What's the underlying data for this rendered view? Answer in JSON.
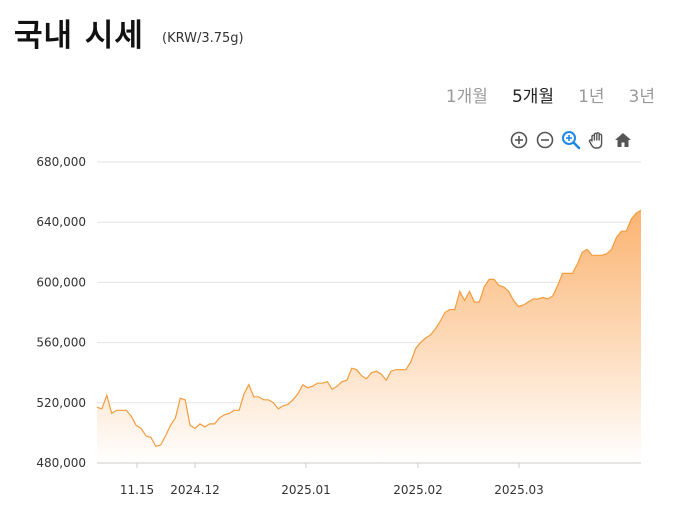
{
  "header": {
    "title": "국내 시세",
    "unit": "(KRW/3.75g)"
  },
  "tabs": [
    {
      "label": "1개월",
      "active": false
    },
    {
      "label": "5개월",
      "active": true
    },
    {
      "label": "1년",
      "active": false
    },
    {
      "label": "3년",
      "active": false
    }
  ],
  "toolbar": {
    "icons": [
      "zoom-in-icon",
      "zoom-out-icon",
      "magnifier-zoom-icon",
      "pan-hand-icon",
      "home-reset-icon"
    ],
    "accent": "#1e88e5",
    "icon_color": "#555555"
  },
  "chart_data": {
    "type": "area",
    "ylim": [
      480000,
      680000
    ],
    "yticks": [
      480000,
      520000,
      560000,
      600000,
      640000,
      680000
    ],
    "ytick_labels": [
      "480,000",
      "520,000",
      "560,000",
      "600,000",
      "640,000",
      "680,000"
    ],
    "xticks": [
      "11.15",
      "2024.12",
      "2025.01",
      "2025.02",
      "2025.03"
    ],
    "line_color": "#f39c3c",
    "fill_top_color": "#fbb06a",
    "fill_bottom_color": "#ffffff",
    "values": [
      517000,
      516000,
      525000,
      513000,
      515000,
      515000,
      515000,
      511000,
      505000,
      503000,
      498000,
      497000,
      491000,
      492000,
      498000,
      505000,
      510000,
      523000,
      522000,
      505000,
      503000,
      506000,
      504000,
      506000,
      506000,
      510000,
      512000,
      513000,
      515000,
      515000,
      526000,
      532000,
      524000,
      524000,
      522000,
      522000,
      520000,
      516000,
      518000,
      519000,
      522000,
      526000,
      532000,
      530000,
      531000,
      533000,
      533000,
      534000,
      529000,
      531000,
      534000,
      535000,
      543000,
      542000,
      538000,
      536000,
      540000,
      541000,
      539000,
      535000,
      541000,
      542000,
      542000,
      542000,
      547000,
      556000,
      560000,
      563000,
      565000,
      569000,
      574000,
      580000,
      582000,
      582000,
      594000,
      588000,
      594000,
      587000,
      587000,
      597000,
      602000,
      602000,
      598000,
      597000,
      594000,
      588000,
      584000,
      585000,
      587000,
      589000,
      589000,
      590000,
      589000,
      591000,
      598000,
      606000,
      606000,
      606000,
      612000,
      620000,
      622000,
      618000,
      618000,
      618000,
      619000,
      622000,
      630000,
      634000,
      634000,
      642000,
      646000,
      648000
    ]
  }
}
